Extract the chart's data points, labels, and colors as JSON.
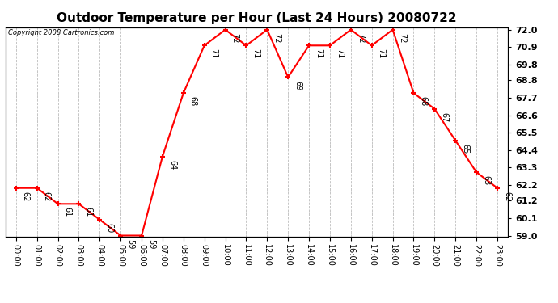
{
  "title": "Outdoor Temperature per Hour (Last 24 Hours) 20080722",
  "copyright": "Copyright 2008 Cartronics.com",
  "hours": [
    "00:00",
    "01:00",
    "02:00",
    "03:00",
    "04:00",
    "05:00",
    "06:00",
    "07:00",
    "08:00",
    "09:00",
    "10:00",
    "11:00",
    "12:00",
    "13:00",
    "14:00",
    "15:00",
    "16:00",
    "17:00",
    "18:00",
    "19:00",
    "20:00",
    "21:00",
    "22:00",
    "23:00"
  ],
  "temps": [
    62,
    62,
    61,
    61,
    60,
    59,
    59,
    64,
    68,
    71,
    72,
    71,
    72,
    69,
    71,
    71,
    72,
    71,
    72,
    68,
    67,
    65,
    63,
    62
  ],
  "ylim_min": 59.0,
  "ylim_max": 72.0,
  "yticks": [
    59.0,
    60.1,
    61.2,
    62.2,
    63.3,
    64.4,
    65.5,
    66.6,
    67.7,
    68.8,
    69.8,
    70.9,
    72.0
  ],
  "line_color": "red",
  "marker_color": "red",
  "background_color": "white",
  "grid_color": "#bbbbbb",
  "title_fontsize": 11,
  "tick_fontsize": 7,
  "annotation_fontsize": 7,
  "copyright_fontsize": 6,
  "ytick_fontsize": 8
}
